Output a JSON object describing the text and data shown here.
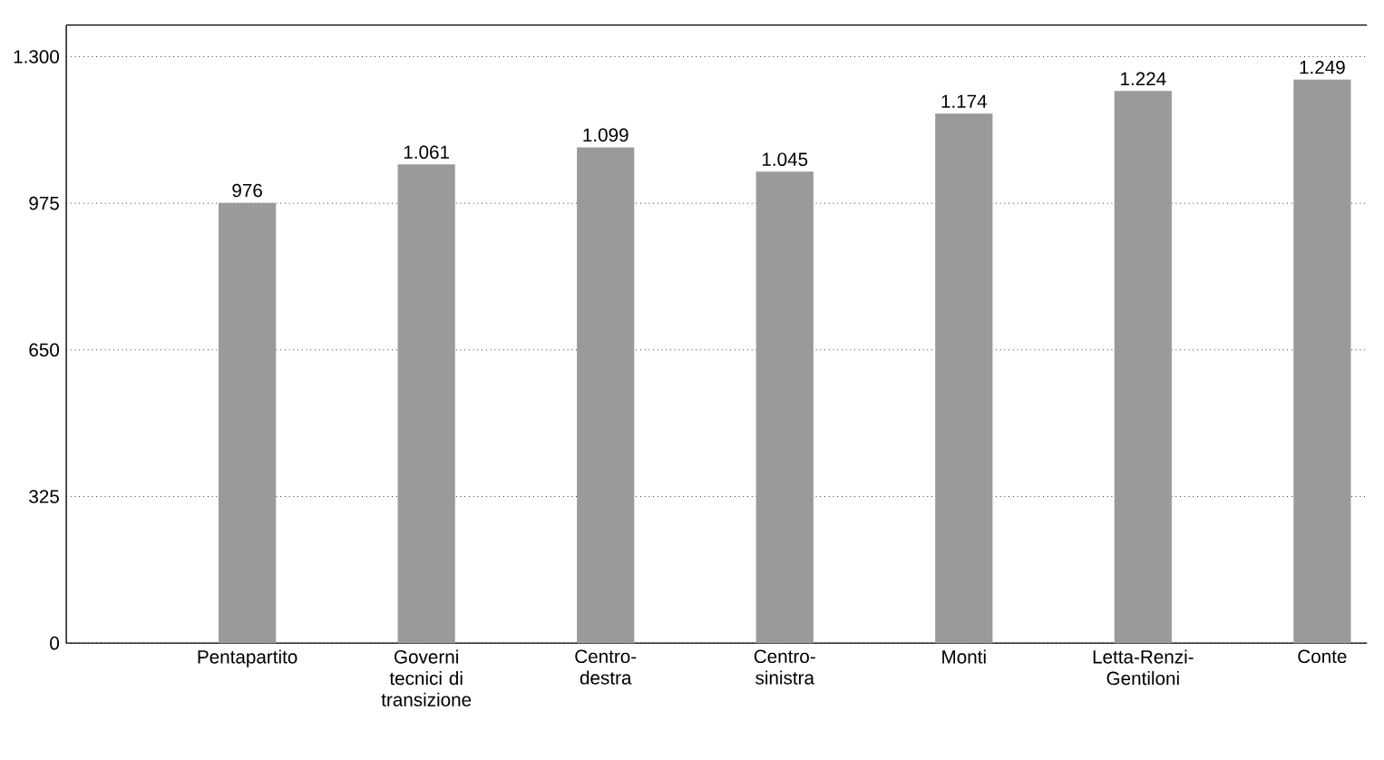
{
  "chart_data": {
    "type": "bar",
    "categories": [
      "Pentapartito",
      "Governi tecnici di transizione",
      "Centro-destra",
      "Centro-sinistra",
      "Monti",
      "Letta-Renzi-Gentiloni",
      "Conte"
    ],
    "values": [
      976,
      1061,
      1099,
      1045,
      1174,
      1224,
      1249
    ],
    "value_labels": [
      "976",
      "1.061",
      "1.099",
      "1.045",
      "1.174",
      "1.224",
      "1.249"
    ],
    "color": "#9a9a9a",
    "ylim": [
      0,
      1370
    ],
    "yticks": [
      {
        "value": 0,
        "label": "0"
      },
      {
        "value": 325,
        "label": "325"
      },
      {
        "value": 650,
        "label": "650"
      },
      {
        "value": 975,
        "label": "975"
      },
      {
        "value": 1300,
        "label": "1.300"
      }
    ],
    "grid": "y"
  }
}
